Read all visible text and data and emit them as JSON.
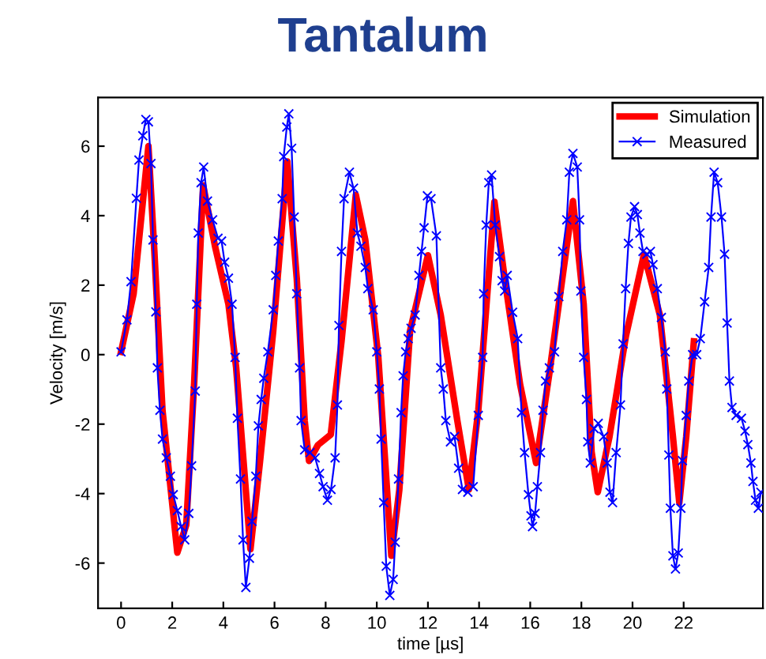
{
  "chart_data": {
    "type": "line",
    "title": "Tantalum",
    "xlabel": "time [µs]",
    "ylabel": "Velocity [m/s]",
    "xlim": [
      -0.9,
      25.1
    ],
    "ylim": [
      -7.3,
      7.4
    ],
    "xticks": [
      0,
      2,
      4,
      6,
      8,
      10,
      12,
      14,
      16,
      18,
      20,
      22
    ],
    "yticks": [
      -6,
      -4,
      -2,
      0,
      2,
      4,
      6
    ],
    "grid": false,
    "legend": "top right",
    "series": [
      {
        "name": "Simulation",
        "color": "#ff0000",
        "marker": "none",
        "line_style": "solid",
        "x": [
          0,
          0.49,
          1.07,
          1.3,
          1.62,
          2.2,
          2.55,
          2.86,
          3.21,
          3.68,
          4.2,
          4.5,
          5.06,
          5.43,
          5.95,
          6.5,
          6.87,
          7.18,
          7.35,
          7.7,
          8.2,
          8.62,
          9.18,
          9.55,
          10.06,
          10.57,
          10.88,
          11.3,
          12.0,
          12.5,
          13.15,
          13.6,
          13.97,
          14.6,
          15.0,
          15.6,
          16.23,
          16.75,
          17.67,
          18.09,
          18.4,
          18.64,
          19.1,
          19.74,
          20.45,
          21.07,
          21.58,
          21.83,
          22.1,
          22.4
        ],
        "values": [
          0.08,
          1.75,
          6.0,
          3.0,
          -1.6,
          -5.7,
          -4.9,
          -0.8,
          4.87,
          3.1,
          1.45,
          -0.37,
          -5.6,
          -3.1,
          0.68,
          5.56,
          2.2,
          -1.9,
          -3.06,
          -2.6,
          -2.3,
          0.38,
          4.6,
          3.3,
          -0.08,
          -5.79,
          -3.9,
          0.68,
          2.86,
          1.14,
          -1.9,
          -3.88,
          -1.6,
          4.4,
          2.2,
          -0.84,
          -3.12,
          -0.53,
          4.42,
          1.45,
          -2.8,
          -3.96,
          -2.36,
          0.53,
          2.89,
          1.14,
          -2.36,
          -4.26,
          -2.36,
          0.38
        ]
      },
      {
        "name": "Measured",
        "color": "#0000ff",
        "marker": "cross",
        "line_style": "solid",
        "x": [
          0,
          0.23,
          0.39,
          0.6,
          0.7,
          0.85,
          0.97,
          1.07,
          1.17,
          1.25,
          1.36,
          1.42,
          1.52,
          1.62,
          1.77,
          1.93,
          2.04,
          2.2,
          2.35,
          2.49,
          2.65,
          2.76,
          2.9,
          2.96,
          3.02,
          3.13,
          3.23,
          3.38,
          3.58,
          3.79,
          3.93,
          4.05,
          4.2,
          4.34,
          4.46,
          4.55,
          4.67,
          4.77,
          4.88,
          5.02,
          5.12,
          5.27,
          5.37,
          5.48,
          5.58,
          5.74,
          5.95,
          6.05,
          6.15,
          6.3,
          6.36,
          6.48,
          6.56,
          6.67,
          6.77,
          6.87,
          6.98,
          7.04,
          7.18,
          7.39,
          7.59,
          7.76,
          7.9,
          8.07,
          8.21,
          8.37,
          8.46,
          8.52,
          8.62,
          8.72,
          8.93,
          9.09,
          9.24,
          9.38,
          9.55,
          9.65,
          9.86,
          10.0,
          10.1,
          10.17,
          10.27,
          10.37,
          10.51,
          10.64,
          10.72,
          10.85,
          10.95,
          11.03,
          11.13,
          11.23,
          11.34,
          11.5,
          11.65,
          11.75,
          11.85,
          11.98,
          12.12,
          12.33,
          12.5,
          12.6,
          12.7,
          12.88,
          13.04,
          13.2,
          13.35,
          13.56,
          13.77,
          13.97,
          14.14,
          14.18,
          14.28,
          14.38,
          14.49,
          14.63,
          14.8,
          14.9,
          15.0,
          15.1,
          15.31,
          15.51,
          15.66,
          15.78,
          15.93,
          16.03,
          16.09,
          16.19,
          16.28,
          16.4,
          16.5,
          16.6,
          16.75,
          16.95,
          17.12,
          17.27,
          17.43,
          17.53,
          17.67,
          17.84,
          17.93,
          17.98,
          18.09,
          18.2,
          18.25,
          18.35,
          18.5,
          18.66,
          18.87,
          19.01,
          19.12,
          19.22,
          19.36,
          19.53,
          19.63,
          19.73,
          19.84,
          19.94,
          20.08,
          20.19,
          20.29,
          20.41,
          20.56,
          20.7,
          20.8,
          20.97,
          21.13,
          21.28,
          21.34,
          21.42,
          21.48,
          21.58,
          21.68,
          21.79,
          21.89,
          21.95,
          22.1,
          22.2,
          22.35,
          22.51,
          22.65,
          22.82,
          22.98,
          23.07,
          23.19,
          23.33,
          23.48,
          23.6,
          23.7,
          23.79,
          23.89,
          24.05,
          24.26,
          24.4,
          24.51,
          24.63,
          24.71,
          24.81,
          24.92,
          25.02
        ],
        "values": [
          0.08,
          1.0,
          2.1,
          4.5,
          5.6,
          6.3,
          6.77,
          6.7,
          5.5,
          3.3,
          1.23,
          -0.38,
          -1.6,
          -2.43,
          -2.97,
          -3.5,
          -4.03,
          -4.49,
          -4.95,
          -5.33,
          -4.57,
          -3.2,
          -1.05,
          1.45,
          3.5,
          4.95,
          5.4,
          4.42,
          3.88,
          3.35,
          3.27,
          2.66,
          2.2,
          1.45,
          -0.08,
          -1.83,
          -3.58,
          -5.33,
          -6.7,
          -5.86,
          -4.8,
          -3.5,
          -2.05,
          -1.29,
          -0.68,
          0.08,
          1.29,
          2.28,
          3.27,
          4.49,
          5.7,
          6.55,
          6.93,
          5.94,
          3.96,
          1.75,
          -0.38,
          -1.9,
          -2.74,
          -2.82,
          -2.97,
          -3.42,
          -3.8,
          -4.19,
          -3.88,
          -2.97,
          -1.45,
          0.84,
          2.97,
          4.49,
          5.25,
          4.79,
          3.5,
          3.12,
          2.51,
          1.9,
          1.29,
          0.08,
          -0.99,
          -2.43,
          -4.26,
          -6.09,
          -6.93,
          -6.47,
          -5.4,
          -3.58,
          -1.67,
          -0.61,
          0.08,
          0.46,
          0.76,
          1.14,
          2.28,
          2.97,
          3.65,
          4.57,
          4.49,
          3.42,
          -0.38,
          -0.99,
          -1.9,
          -2.51,
          -2.36,
          -3.27,
          -3.88,
          -3.96,
          -3.8,
          -1.75,
          -0.08,
          1.75,
          3.73,
          4.95,
          5.17,
          3.73,
          2.82,
          2.13,
          1.83,
          2.28,
          1.22,
          0.46,
          -1.67,
          -2.82,
          -4.03,
          -4.64,
          -4.95,
          -4.57,
          -3.8,
          -2.82,
          -1.6,
          -0.76,
          -0.38,
          0.08,
          1.67,
          2.97,
          3.88,
          5.25,
          5.79,
          5.4,
          3.88,
          1.83,
          -0.08,
          -1.29,
          -2.51,
          -3.12,
          -2.13,
          -1.98,
          -2.36,
          -3.12,
          -3.96,
          -4.26,
          -2.82,
          -1.45,
          0.31,
          1.9,
          3.2,
          3.96,
          4.26,
          4.03,
          3.5,
          2.97,
          2.89,
          2.97,
          2.59,
          1.9,
          1.07,
          0.08,
          -0.99,
          -2.89,
          -4.42,
          -5.79,
          -6.17,
          -5.71,
          -4.42,
          -3.05,
          -1.75,
          -0.76,
          0.0,
          0.0,
          0.46,
          1.52,
          2.51,
          3.96,
          5.25,
          4.95,
          3.96,
          2.89,
          0.91,
          -0.76,
          -1.52,
          -1.75,
          -1.83,
          -2.2,
          -2.59,
          -3.12,
          -3.65,
          -4.19,
          -4.42,
          -3.96
        ]
      }
    ]
  }
}
